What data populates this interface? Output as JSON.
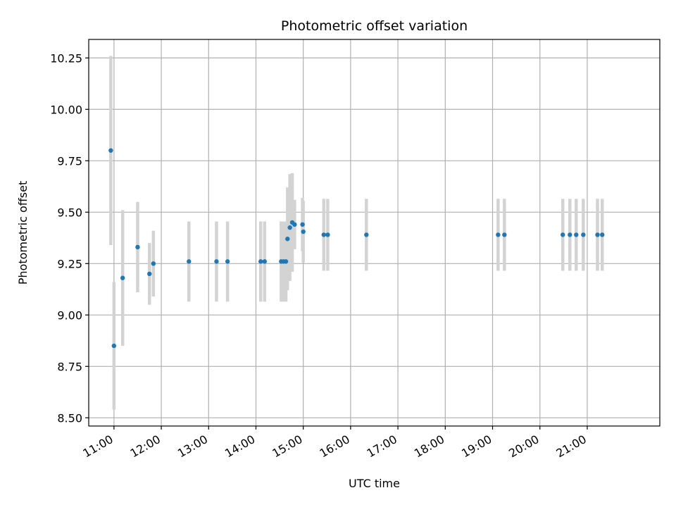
{
  "chart_data": {
    "type": "scatter",
    "title": "Photometric offset variation",
    "xlabel": "UTC time",
    "ylabel": "Photometric offset",
    "x_axis_type": "time",
    "x_range": [
      "10:28",
      "22:32"
    ],
    "ylim": [
      8.46,
      10.34
    ],
    "grid": true,
    "x_ticks": [
      "11:00",
      "12:00",
      "13:00",
      "14:00",
      "15:00",
      "16:00",
      "17:00",
      "18:00",
      "19:00",
      "20:00",
      "21:00"
    ],
    "y_ticks": [
      "8.50",
      "8.75",
      "9.00",
      "9.25",
      "9.50",
      "9.75",
      "10.00",
      "10.25"
    ],
    "colors": {
      "point": "#1f77b4",
      "error_bar": "#d3d3d3",
      "grid": "#b0b0b0"
    },
    "points": [
      {
        "x": "10:56",
        "y": 9.8,
        "yerr": 0.46
      },
      {
        "x": "11:00",
        "y": 8.85,
        "yerr": 0.31
      },
      {
        "x": "11:11",
        "y": 9.18,
        "yerr": 0.33
      },
      {
        "x": "11:30",
        "y": 9.33,
        "yerr": 0.22
      },
      {
        "x": "11:45",
        "y": 9.2,
        "yerr": 0.15
      },
      {
        "x": "11:50",
        "y": 9.25,
        "yerr": 0.16
      },
      {
        "x": "12:35",
        "y": 9.26,
        "yerr": 0.195
      },
      {
        "x": "13:10",
        "y": 9.26,
        "yerr": 0.195
      },
      {
        "x": "13:24",
        "y": 9.26,
        "yerr": 0.195
      },
      {
        "x": "14:06",
        "y": 9.26,
        "yerr": 0.195
      },
      {
        "x": "14:11",
        "y": 9.26,
        "yerr": 0.195
      },
      {
        "x": "14:32",
        "y": 9.26,
        "yerr": 0.195
      },
      {
        "x": "14:35",
        "y": 9.26,
        "yerr": 0.195
      },
      {
        "x": "14:38",
        "y": 9.26,
        "yerr": 0.195
      },
      {
        "x": "14:40",
        "y": 9.37,
        "yerr": 0.25
      },
      {
        "x": "14:43",
        "y": 9.425,
        "yerr": 0.26
      },
      {
        "x": "14:46",
        "y": 9.45,
        "yerr": 0.24
      },
      {
        "x": "14:49",
        "y": 9.44,
        "yerr": 0.12
      },
      {
        "x": "14:59",
        "y": 9.44,
        "yerr": 0.13
      },
      {
        "x": "15:00",
        "y": 9.405,
        "yerr": 0.15
      },
      {
        "x": "15:26",
        "y": 9.39,
        "yerr": 0.175
      },
      {
        "x": "15:31",
        "y": 9.39,
        "yerr": 0.175
      },
      {
        "x": "16:20",
        "y": 9.39,
        "yerr": 0.175
      },
      {
        "x": "19:07",
        "y": 9.39,
        "yerr": 0.175
      },
      {
        "x": "19:15",
        "y": 9.39,
        "yerr": 0.175
      },
      {
        "x": "20:29",
        "y": 9.39,
        "yerr": 0.175
      },
      {
        "x": "20:38",
        "y": 9.39,
        "yerr": 0.175
      },
      {
        "x": "20:46",
        "y": 9.39,
        "yerr": 0.175
      },
      {
        "x": "20:55",
        "y": 9.39,
        "yerr": 0.175
      },
      {
        "x": "21:13",
        "y": 9.39,
        "yerr": 0.175
      },
      {
        "x": "21:19",
        "y": 9.39,
        "yerr": 0.175
      }
    ]
  }
}
